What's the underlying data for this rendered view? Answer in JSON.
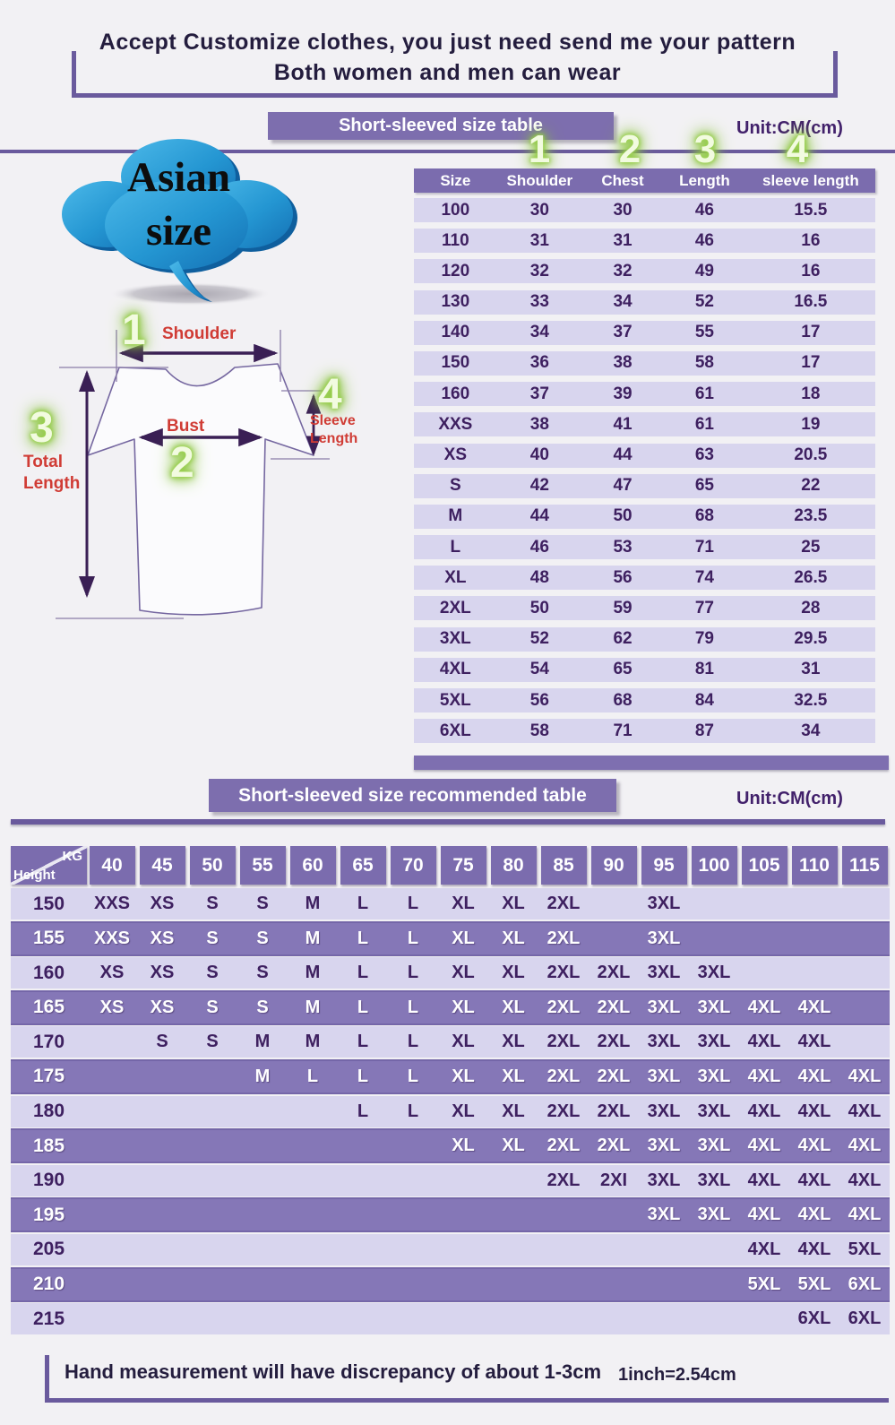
{
  "title": {
    "line1": "Accept Customize clothes, you just need send me your pattern",
    "line2": "Both women and men can wear"
  },
  "section1": {
    "banner": "Short-sleeved size  table",
    "unit": "Unit:CM(cm)"
  },
  "cloud": {
    "text1": "Asian",
    "text2": "size"
  },
  "diagram": {
    "num_shoulder": "1",
    "num_bust": "2",
    "num_length": "3",
    "num_sleeve": "4",
    "label_shoulder": "Shoulder",
    "label_bust": "Bust",
    "label_total_1": "Total",
    "label_total_2": "Length",
    "label_sleeve_1": "Sleeve",
    "label_sleeve_2": "Length"
  },
  "size_table": {
    "col_numbers": [
      "1",
      "2",
      "3",
      "4"
    ],
    "headers": [
      "Size",
      "Shoulder",
      "Chest",
      "Length",
      "sleeve length"
    ],
    "rows": [
      [
        "100",
        "30",
        "30",
        "46",
        "15.5"
      ],
      [
        "110",
        "31",
        "31",
        "46",
        "16"
      ],
      [
        "120",
        "32",
        "32",
        "49",
        "16"
      ],
      [
        "130",
        "33",
        "34",
        "52",
        "16.5"
      ],
      [
        "140",
        "34",
        "37",
        "55",
        "17"
      ],
      [
        "150",
        "36",
        "38",
        "58",
        "17"
      ],
      [
        "160",
        "37",
        "39",
        "61",
        "18"
      ],
      [
        "XXS",
        "38",
        "41",
        "61",
        "19"
      ],
      [
        "XS",
        "40",
        "44",
        "63",
        "20.5"
      ],
      [
        "S",
        "42",
        "47",
        "65",
        "22"
      ],
      [
        "M",
        "44",
        "50",
        "68",
        "23.5"
      ],
      [
        "L",
        "46",
        "53",
        "71",
        "25"
      ],
      [
        "XL",
        "48",
        "56",
        "74",
        "26.5"
      ],
      [
        "2XL",
        "50",
        "59",
        "77",
        "28"
      ],
      [
        "3XL",
        "52",
        "62",
        "79",
        "29.5"
      ],
      [
        "4XL",
        "54",
        "65",
        "81",
        "31"
      ],
      [
        "5XL",
        "56",
        "68",
        "84",
        "32.5"
      ],
      [
        "6XL",
        "58",
        "71",
        "87",
        "34"
      ]
    ]
  },
  "section2": {
    "banner": "Short-sleeved size recommended table",
    "unit": "Unit:CM(cm)"
  },
  "recommend_table": {
    "corner": {
      "top": "KG",
      "bottom": "Height"
    },
    "kg_columns": [
      "40",
      "45",
      "50",
      "55",
      "60",
      "65",
      "70",
      "75",
      "80",
      "85",
      "90",
      "95",
      "100",
      "105",
      "110",
      "115"
    ],
    "rows": [
      {
        "height": "150",
        "cells": [
          "XXS",
          "XS",
          "S",
          "S",
          "M",
          "L",
          "L",
          "XL",
          "XL",
          "2XL",
          "",
          "3XL",
          "",
          "",
          "",
          ""
        ]
      },
      {
        "height": "155",
        "cells": [
          "XXS",
          "XS",
          "S",
          "S",
          "M",
          "L",
          "L",
          "XL",
          "XL",
          "2XL",
          "",
          "3XL",
          "",
          "",
          "",
          ""
        ]
      },
      {
        "height": "160",
        "cells": [
          "XS",
          "XS",
          "S",
          "S",
          "M",
          "L",
          "L",
          "XL",
          "XL",
          "2XL",
          "2XL",
          "3XL",
          "3XL",
          "",
          "",
          ""
        ]
      },
      {
        "height": "165",
        "cells": [
          "XS",
          "XS",
          "S",
          "S",
          "M",
          "L",
          "L",
          "XL",
          "XL",
          "2XL",
          "2XL",
          "3XL",
          "3XL",
          "4XL",
          "4XL",
          ""
        ]
      },
      {
        "height": "170",
        "cells": [
          "",
          "S",
          "S",
          "M",
          "M",
          "L",
          "L",
          "XL",
          "XL",
          "2XL",
          "2XL",
          "3XL",
          "3XL",
          "4XL",
          "4XL",
          ""
        ]
      },
      {
        "height": "175",
        "cells": [
          "",
          "",
          "",
          "M",
          "L",
          "L",
          "L",
          "XL",
          "XL",
          "2XL",
          "2XL",
          "3XL",
          "3XL",
          "4XL",
          "4XL",
          "4XL"
        ]
      },
      {
        "height": "180",
        "cells": [
          "",
          "",
          "",
          "",
          "",
          "L",
          "L",
          "XL",
          "XL",
          "2XL",
          "2XL",
          "3XL",
          "3XL",
          "4XL",
          "4XL",
          "4XL"
        ]
      },
      {
        "height": "185",
        "cells": [
          "",
          "",
          "",
          "",
          "",
          "",
          "",
          "XL",
          "XL",
          "2XL",
          "2XL",
          "3XL",
          "3XL",
          "4XL",
          "4XL",
          "4XL"
        ]
      },
      {
        "height": "190",
        "cells": [
          "",
          "",
          "",
          "",
          "",
          "",
          "",
          "",
          "",
          "2XL",
          "2XI",
          "3XL",
          "3XL",
          "4XL",
          "4XL",
          "4XL"
        ]
      },
      {
        "height": "195",
        "cells": [
          "",
          "",
          "",
          "",
          "",
          "",
          "",
          "",
          "",
          "",
          "",
          "3XL",
          "3XL",
          "4XL",
          "4XL",
          "4XL"
        ]
      },
      {
        "height": "205",
        "cells": [
          "",
          "",
          "",
          "",
          "",
          "",
          "",
          "",
          "",
          "",
          "",
          "",
          "",
          "4XL",
          "4XL",
          "5XL"
        ]
      },
      {
        "height": "210",
        "cells": [
          "",
          "",
          "",
          "",
          "",
          "",
          "",
          "",
          "",
          "",
          "",
          "",
          "",
          "5XL",
          "5XL",
          "6XL"
        ]
      },
      {
        "height": "215",
        "cells": [
          "",
          "",
          "",
          "",
          "",
          "",
          "",
          "",
          "",
          "",
          "",
          "",
          "",
          "",
          "6XL",
          "6XL"
        ]
      }
    ]
  },
  "footer": {
    "note": "Hand measurement will have discrepancy of about  1-3cm",
    "conversion": "1inch=2.54cm"
  },
  "colors": {
    "banner_purple": "#7d6eae",
    "row_light": "#d8d5ee",
    "row_dark": "#8577b7",
    "text_dark": "#3e2060",
    "line_purple": "#6a5a9d",
    "label_red": "#d03c35",
    "glow_green": "#8cc63f",
    "cloud_blue": "#2196d3"
  }
}
